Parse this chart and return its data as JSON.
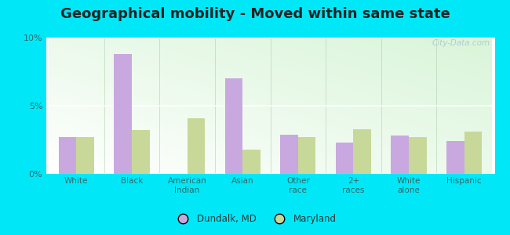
{
  "title": "Geographical mobility - Moved within same state",
  "categories": [
    "White",
    "Black",
    "American\nIndian",
    "Asian",
    "Other\nrace",
    "2+\nraces",
    "White\nalone",
    "Hispanic"
  ],
  "dundalk_values": [
    2.7,
    8.8,
    0.0,
    7.0,
    2.9,
    2.3,
    2.8,
    2.4
  ],
  "maryland_values": [
    2.7,
    3.2,
    4.1,
    1.8,
    2.7,
    3.3,
    2.7,
    3.1
  ],
  "dundalk_color": "#c9a8e0",
  "maryland_color": "#c8d898",
  "ylim": [
    0,
    10
  ],
  "yticks": [
    0,
    5,
    10
  ],
  "ytick_labels": [
    "0%",
    "5%",
    "10%"
  ],
  "bar_width": 0.32,
  "outer_bg": "#00e8f8",
  "title_fontsize": 13,
  "legend_labels": [
    "Dundalk, MD",
    "Maryland"
  ],
  "watermark": "City-Data.com",
  "bg_left_color": "#d4edcc",
  "bg_right_color": "#eef8f8",
  "bg_top_color": "#f5fdf8",
  "bg_bottom_color": "#d8f0d0"
}
